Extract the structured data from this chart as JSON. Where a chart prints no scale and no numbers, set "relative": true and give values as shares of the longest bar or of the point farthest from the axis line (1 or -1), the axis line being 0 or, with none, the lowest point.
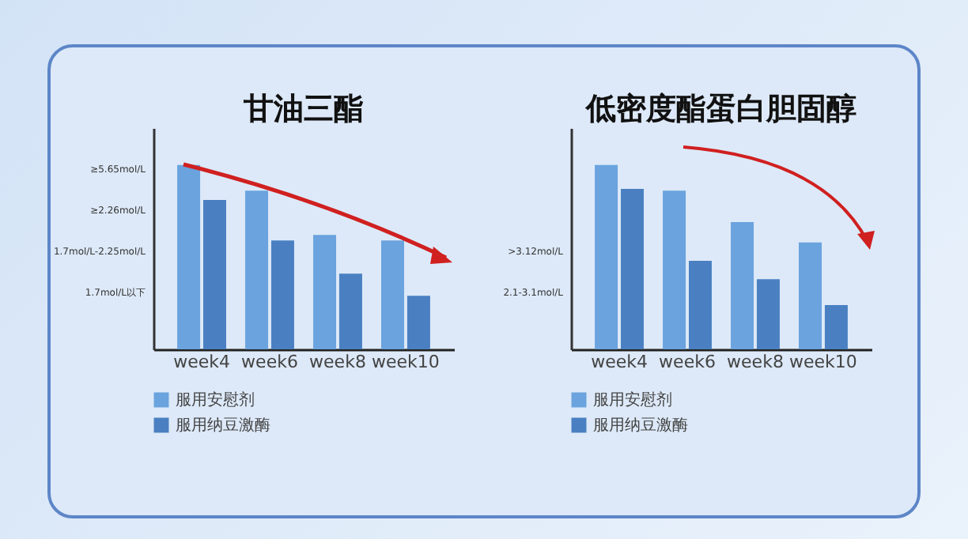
{
  "chart_data": [
    {
      "type": "bar",
      "title": "甘油三酯",
      "categories": [
        "week4",
        "week6",
        "week8",
        "week10"
      ],
      "relative": true,
      "legend": "bottom",
      "grid": false,
      "annotations": [
        "≥5.65mol/L",
        "≥2.26mol/L",
        "1.7mol/L-2.25mol/L",
        "1.7mol/L以下"
      ],
      "series": [
        {
          "name": "服用安慰剂",
          "color": "#6aa3de",
          "values": [
            1,
            0.86,
            0.62,
            0.59
          ]
        },
        {
          "name": "服用纳豆激酶",
          "color": "#4a80c2",
          "values": [
            0.81,
            0.59,
            0.41,
            0.29
          ]
        }
      ]
    },
    {
      "type": "bar",
      "title": "低密度酯蛋白胆固醇",
      "categories": [
        "week4",
        "week6",
        "week8",
        "week10"
      ],
      "relative": true,
      "legend": "bottom",
      "grid": false,
      "annotations": [
        ">3.12mol/L",
        "2.1-3.1mol/L"
      ],
      "series": [
        {
          "name": "服用安慰剂",
          "color": "#6aa3de",
          "values": [
            1,
            0.86,
            0.69,
            0.58
          ]
        },
        {
          "name": "服用纳豆激酶",
          "color": "#4a80c2",
          "values": [
            0.87,
            0.48,
            0.38,
            0.24
          ]
        }
      ]
    }
  ]
}
